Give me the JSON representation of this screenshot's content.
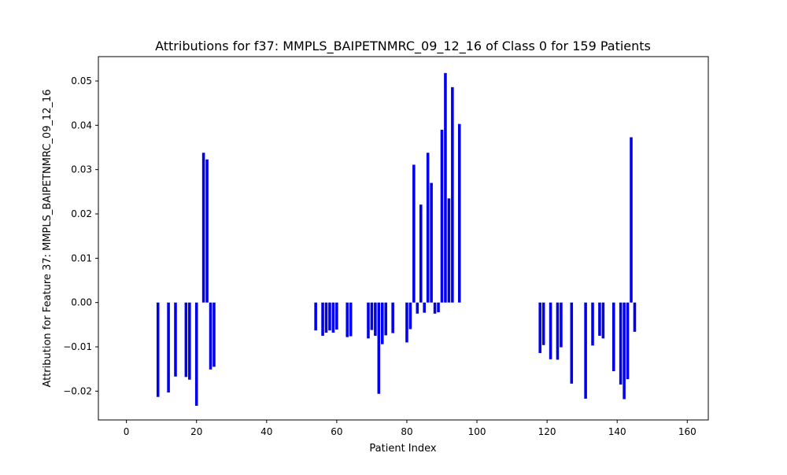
{
  "chart_data": {
    "type": "bar",
    "title": "Attributions for f37: MMPLS_BAIPETNMRC_09_12_16 of Class 0 for 159 Patients",
    "xlabel": "Patient Index",
    "ylabel": "Attribution for Feature 37: MMPLS_BAIPETNMRC_09_12_16",
    "xlim": [
      -8.0,
      166.0
    ],
    "ylim": [
      -0.0265,
      0.0555
    ],
    "x_ticks": [
      0,
      20,
      40,
      60,
      80,
      100,
      120,
      140,
      160
    ],
    "y_ticks": [
      -0.02,
      -0.01,
      0.0,
      0.01,
      0.02,
      0.03,
      0.04,
      0.05
    ],
    "x_tick_labels": [
      "0",
      "20",
      "40",
      "60",
      "80",
      "100",
      "120",
      "140",
      "160"
    ],
    "y_tick_labels": [
      "−0.02",
      "−0.01",
      "0.00",
      "0.01",
      "0.02",
      "0.03",
      "0.04",
      "0.05"
    ],
    "bar_color": "#0000ee",
    "grid": false,
    "x": [
      9,
      12,
      14,
      17,
      18,
      20,
      22,
      23,
      24,
      25,
      54,
      56,
      57,
      58,
      59,
      60,
      63,
      64,
      69,
      70,
      71,
      72,
      73,
      74,
      76,
      80,
      81,
      82,
      83,
      84,
      85,
      86,
      87,
      88,
      89,
      90,
      91,
      92,
      93,
      95,
      118,
      119,
      121,
      123,
      124,
      127,
      131,
      133,
      135,
      136,
      139,
      141,
      142,
      143,
      144,
      145
    ],
    "values": [
      -0.0213,
      -0.0203,
      -0.0167,
      -0.0168,
      -0.0174,
      -0.0233,
      0.0338,
      0.0323,
      -0.0151,
      -0.0145,
      -0.0063,
      -0.0075,
      -0.0068,
      -0.0063,
      -0.0068,
      -0.0061,
      -0.0078,
      -0.0076,
      -0.0081,
      -0.0062,
      -0.0075,
      -0.0206,
      -0.0094,
      -0.0074,
      -0.0069,
      -0.009,
      -0.006,
      0.0311,
      -0.0025,
      0.0221,
      -0.0023,
      0.0338,
      0.027,
      -0.0025,
      -0.0022,
      0.039,
      0.0518,
      0.0235,
      0.0486,
      0.0403,
      -0.0114,
      -0.0096,
      -0.0128,
      -0.0129,
      -0.0101,
      -0.0183,
      -0.0217,
      -0.0097,
      -0.0075,
      -0.0081,
      -0.0155,
      -0.0185,
      -0.0218,
      -0.0173,
      0.0373,
      -0.0066
    ]
  }
}
